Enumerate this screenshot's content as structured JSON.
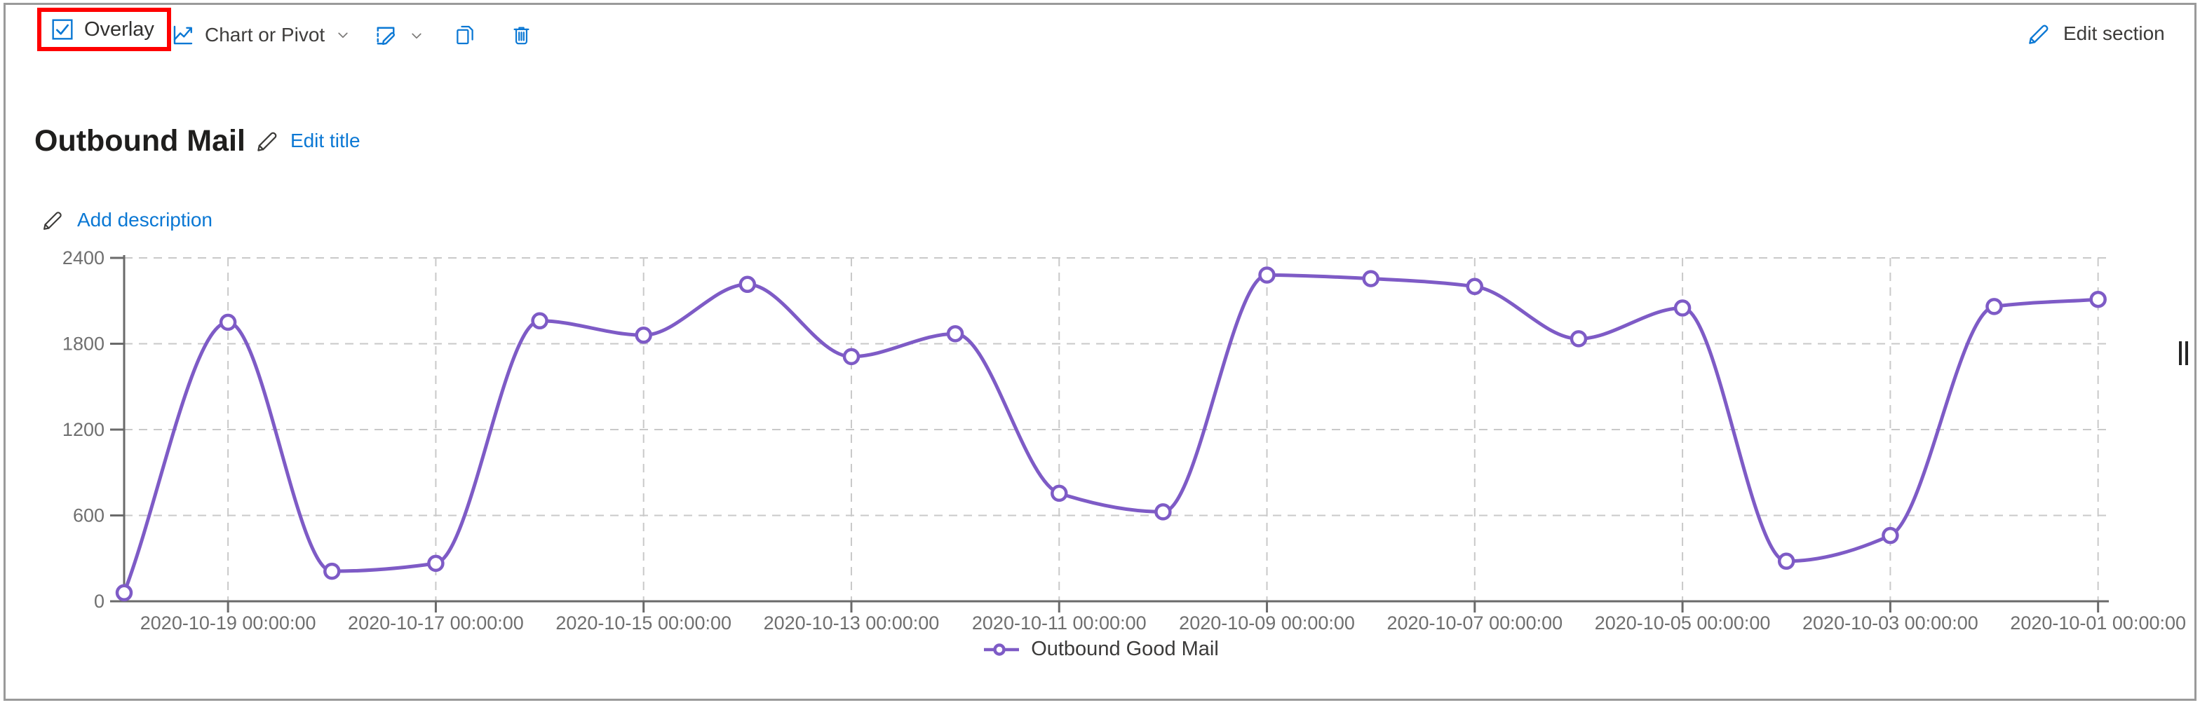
{
  "window": {
    "frame_color": "#9a9a9a"
  },
  "toolbar": {
    "overlay": {
      "label": "Overlay",
      "checked": true,
      "highlight_color": "#ff0000"
    },
    "chart_or_pivot": {
      "label": "Chart or Pivot"
    },
    "edit_section": {
      "label": "Edit section"
    },
    "icons": {
      "overlay_checkbox": "checked-checkbox",
      "chart_or_pivot": "line-chart-with-arrow",
      "chart_or_pivot_dropdown": "chevron-down",
      "rename_visual": "card-with-pencil",
      "rename_visual_dropdown": "chevron-down",
      "copy": "copy-pages",
      "delete": "trash-can",
      "edit_section": "pencil"
    }
  },
  "header": {
    "title": "Outbound Mail",
    "edit_title": "Edit title",
    "edit_title_icon": "pencil",
    "add_description": "Add description",
    "add_description_icon": "pencil"
  },
  "colors": {
    "accent_blue": "#0b78d4",
    "link_blue": "#0b78d4",
    "series_purple": "#7e5bc6",
    "highlight_red": "#ff0000",
    "axis_line": "#6a6a6a",
    "axis_text": "#6f6f6f",
    "gridline": "#c9c9c9",
    "title_text": "#1f1e1d",
    "label_text": "#3f3e3d"
  },
  "chart_data": {
    "type": "line",
    "title": "Outbound Mail",
    "xlabel": "",
    "ylabel": "",
    "ylim": [
      0,
      2400
    ],
    "y_ticks": [
      0,
      600,
      1200,
      1800,
      2400
    ],
    "x_tick_labels": [
      "2020-10-19 00:00:00",
      "2020-10-17 00:00:00",
      "2020-10-15 00:00:00",
      "2020-10-13 00:00:00",
      "2020-10-11 00:00:00",
      "2020-10-09 00:00:00",
      "2020-10-07 00:00:00",
      "2020-10-05 00:00:00",
      "2020-10-03 00:00:00",
      "2020-10-01 00:00:00"
    ],
    "x_axis_direction": "time-descending-left-to-right",
    "grid": "dashed",
    "legend_position": "bottom-center",
    "series": [
      {
        "name": "Outbound Good Mail",
        "color": "#7e5bc6",
        "marker": "open-circle",
        "points": [
          {
            "x": "2020-10-20 00:00:00",
            "y": 60
          },
          {
            "x": "2020-10-19 00:00:00",
            "y": 1950
          },
          {
            "x": "2020-10-18 00:00:00",
            "y": 210
          },
          {
            "x": "2020-10-17 00:00:00",
            "y": 265
          },
          {
            "x": "2020-10-16 00:00:00",
            "y": 1960
          },
          {
            "x": "2020-10-15 00:00:00",
            "y": 1860
          },
          {
            "x": "2020-10-14 00:00:00",
            "y": 2215
          },
          {
            "x": "2020-10-13 00:00:00",
            "y": 1710
          },
          {
            "x": "2020-10-12 00:00:00",
            "y": 1870
          },
          {
            "x": "2020-10-11 00:00:00",
            "y": 755
          },
          {
            "x": "2020-10-10 00:00:00",
            "y": 625
          },
          {
            "x": "2020-10-09 00:00:00",
            "y": 2280
          },
          {
            "x": "2020-10-08 00:00:00",
            "y": 2255
          },
          {
            "x": "2020-10-07 00:00:00",
            "y": 2200
          },
          {
            "x": "2020-10-06 00:00:00",
            "y": 1835
          },
          {
            "x": "2020-10-05 00:00:00",
            "y": 2050
          },
          {
            "x": "2020-10-04 00:00:00",
            "y": 280
          },
          {
            "x": "2020-10-03 00:00:00",
            "y": 460
          },
          {
            "x": "2020-10-02 00:00:00",
            "y": 2060
          },
          {
            "x": "2020-10-01 00:00:00",
            "y": 2110
          }
        ]
      }
    ]
  }
}
